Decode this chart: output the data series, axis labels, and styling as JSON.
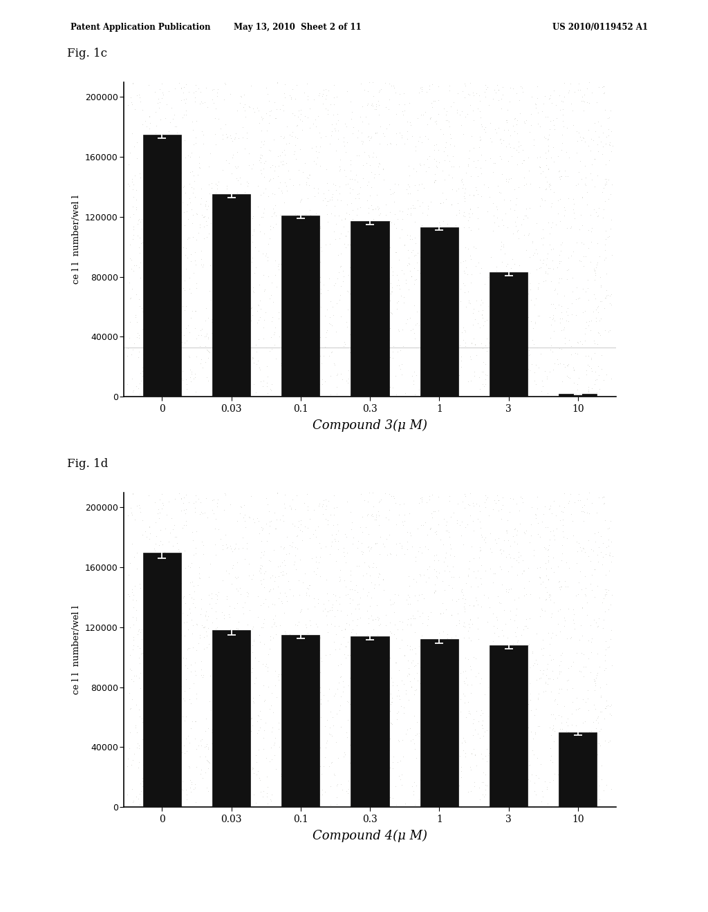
{
  "fig1c": {
    "title": "Fig. 1c",
    "categories": [
      "0",
      "0.03",
      "0.1",
      "0.3",
      "1",
      "3",
      "10"
    ],
    "values": [
      175000,
      135000,
      121000,
      117000,
      113000,
      83000,
      2000
    ],
    "errors": [
      2500,
      2000,
      2000,
      2000,
      2000,
      2000,
      500
    ],
    "xlabel": "Compound 3(μ M)",
    "ylabel": "ce l l  number/wel l",
    "ylim": [
      0,
      210000
    ],
    "yticks": [
      0,
      40000,
      80000,
      120000,
      160000,
      200000
    ],
    "hline_y": 33000,
    "hline_color": "#cccccc",
    "bar_color": "#111111",
    "error_color": "white"
  },
  "fig1d": {
    "title": "Fig. 1d",
    "categories": [
      "0",
      "0.03",
      "0.1",
      "0.3",
      "1",
      "3",
      "10"
    ],
    "values": [
      170000,
      118000,
      115000,
      114000,
      112000,
      108000,
      50000
    ],
    "errors": [
      4000,
      3000,
      2500,
      2500,
      2500,
      2500,
      2000
    ],
    "xlabel": "Compound 4(μ M)",
    "ylabel": "ce l l  number/wel l",
    "ylim": [
      0,
      210000
    ],
    "yticks": [
      0,
      40000,
      80000,
      120000,
      160000,
      200000
    ],
    "hline_y": null,
    "hline_color": null,
    "bar_color": "#111111",
    "error_color": "white"
  },
  "header_line1": "Patent Application Publication",
  "header_line2": "May 13, 2010  Sheet 2 of 11",
  "header_line3": "US 2010/0119452 A1",
  "page_bg": "#ffffff",
  "plot_bg": "#ccccbb",
  "plot_stipple_alpha": 0.5
}
